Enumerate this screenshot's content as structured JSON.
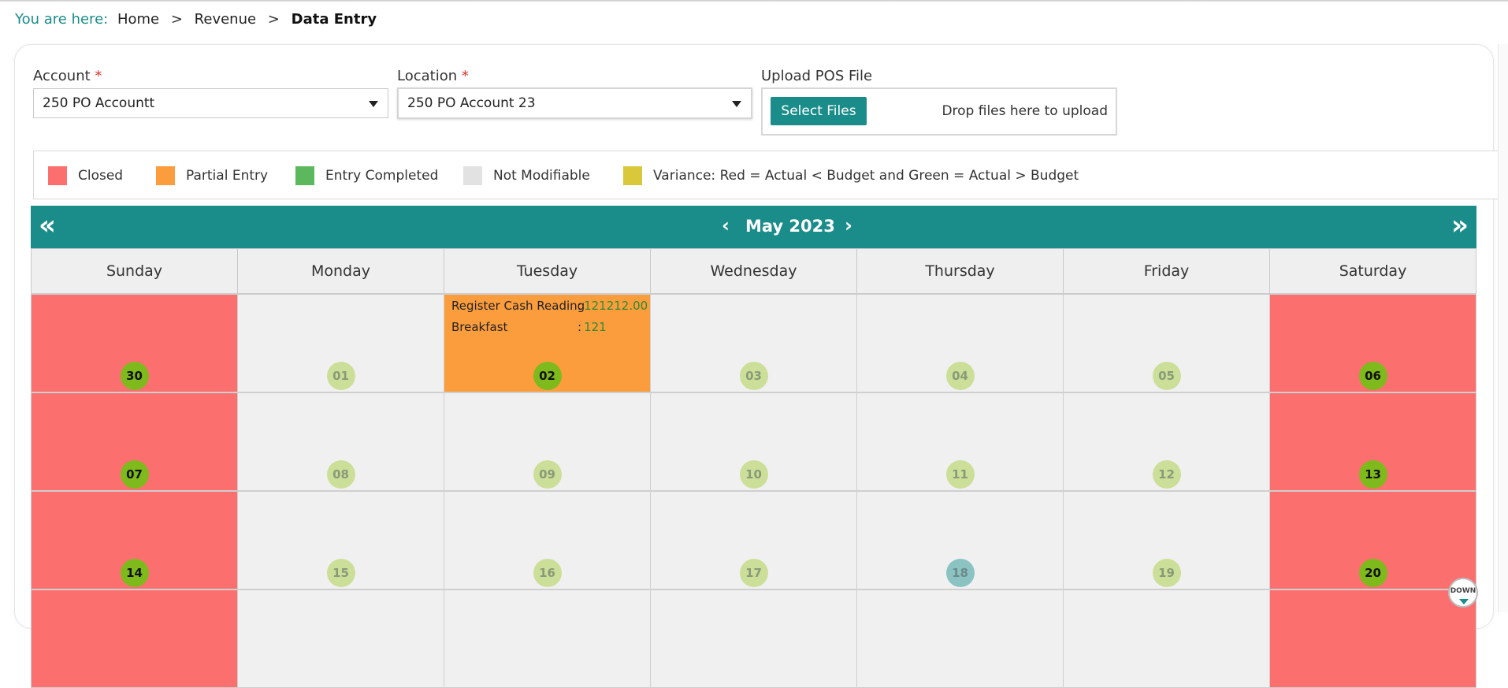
{
  "breadcrumb": {
    "lead": "You are here:",
    "items": [
      "Home",
      "Revenue",
      "Data Entry"
    ],
    "separator": ">"
  },
  "form": {
    "account": {
      "label": "Account",
      "required_mark": "*",
      "value": "250 PO Accountt"
    },
    "location": {
      "label": "Location",
      "required_mark": "*",
      "value": "250 PO Account 23"
    },
    "upload": {
      "label": "Upload POS File",
      "button": "Select Files",
      "drop_text": "Drop files here to upload"
    }
  },
  "legend": [
    {
      "label": "Closed",
      "color": "#fb6f6f"
    },
    {
      "label": "Partial Entry",
      "color": "#fb9d3d"
    },
    {
      "label": "Entry Completed",
      "color": "#5cb85c"
    },
    {
      "label": "Not Modifiable",
      "color": "#e2e2e2"
    },
    {
      "label": "Variance: Red = Actual < Budget and Green = Actual > Budget",
      "color": "#d9c83a"
    }
  ],
  "calendar": {
    "title": "May 2023",
    "prev_year_icon": "«",
    "next_year_icon": "»",
    "prev_month_icon": "‹",
    "next_month_icon": "›",
    "weekdays": [
      "Sunday",
      "Monday",
      "Tuesday",
      "Wednesday",
      "Thursday",
      "Friday",
      "Saturday"
    ],
    "weeks": [
      [
        {
          "day": "30",
          "status": "closed"
        },
        {
          "day": "01",
          "status": "empty"
        },
        {
          "day": "02",
          "status": "partial",
          "entries": [
            {
              "label": "Register Cash Reading",
              "value": "121212.00"
            },
            {
              "label": "Breakfast",
              "value": "121"
            }
          ]
        },
        {
          "day": "03",
          "status": "empty"
        },
        {
          "day": "04",
          "status": "empty"
        },
        {
          "day": "05",
          "status": "empty"
        },
        {
          "day": "06",
          "status": "closed"
        }
      ],
      [
        {
          "day": "07",
          "status": "closed"
        },
        {
          "day": "08",
          "status": "empty"
        },
        {
          "day": "09",
          "status": "empty"
        },
        {
          "day": "10",
          "status": "empty"
        },
        {
          "day": "11",
          "status": "empty"
        },
        {
          "day": "12",
          "status": "empty"
        },
        {
          "day": "13",
          "status": "closed"
        }
      ],
      [
        {
          "day": "14",
          "status": "closed"
        },
        {
          "day": "15",
          "status": "empty"
        },
        {
          "day": "16",
          "status": "empty"
        },
        {
          "day": "17",
          "status": "empty"
        },
        {
          "day": "18",
          "status": "today"
        },
        {
          "day": "19",
          "status": "empty"
        },
        {
          "day": "20",
          "status": "closed"
        }
      ],
      [
        {
          "day": "",
          "status": "closed"
        },
        {
          "day": "",
          "status": "empty"
        },
        {
          "day": "",
          "status": "empty"
        },
        {
          "day": "",
          "status": "empty"
        },
        {
          "day": "",
          "status": "empty"
        },
        {
          "day": "",
          "status": "empty"
        },
        {
          "day": "",
          "status": "closed"
        }
      ]
    ]
  },
  "scroll_down_label": "DOWN"
}
